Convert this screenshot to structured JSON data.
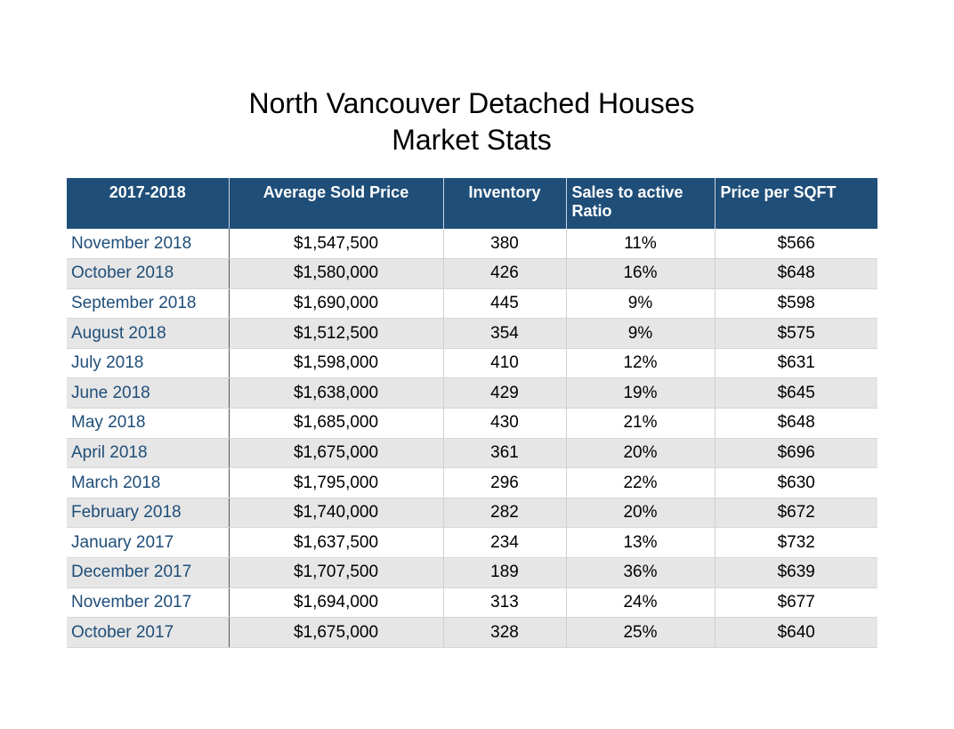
{
  "title": {
    "line1": "North Vancouver Detached Houses",
    "line2": "Market Stats"
  },
  "table": {
    "headers": [
      "2017-2018",
      "Average Sold Price",
      "Inventory",
      "Sales to active Ratio",
      "Price per SQFT"
    ],
    "rows": [
      [
        "November 2018",
        "$1,547,500",
        "380",
        "11%",
        "$566"
      ],
      [
        "October 2018",
        "$1,580,000",
        "426",
        "16%",
        "$648"
      ],
      [
        "September 2018",
        "$1,690,000",
        "445",
        "9%",
        "$598"
      ],
      [
        "August 2018",
        "$1,512,500",
        "354",
        "9%",
        "$575"
      ],
      [
        "July 2018",
        "$1,598,000",
        "410",
        "12%",
        "$631"
      ],
      [
        "June 2018",
        "$1,638,000",
        "429",
        "19%",
        "$645"
      ],
      [
        "May 2018",
        "$1,685,000",
        "430",
        "21%",
        "$648"
      ],
      [
        "April  2018",
        "$1,675,000",
        "361",
        "20%",
        "$696"
      ],
      [
        "March 2018",
        "$1,795,000",
        "296",
        "22%",
        "$630"
      ],
      [
        "February 2018",
        "$1,740,000",
        "282",
        "20%",
        "$672"
      ],
      [
        "January 2017",
        "$1,637,500",
        "234",
        "13%",
        "$732"
      ],
      [
        "December 2017",
        "$1,707,500",
        "189",
        "36%",
        "$639"
      ],
      [
        "November 2017",
        "$1,694,000",
        "313",
        "24%",
        "$677"
      ],
      [
        "October 2017",
        "$1,675,000",
        "328",
        "25%",
        "$640"
      ]
    ]
  },
  "colors": {
    "header_background": "#1f4e79",
    "header_text": "#ffffff",
    "month_text": "#1f4e79",
    "alt_row": "#e6e6e6"
  }
}
